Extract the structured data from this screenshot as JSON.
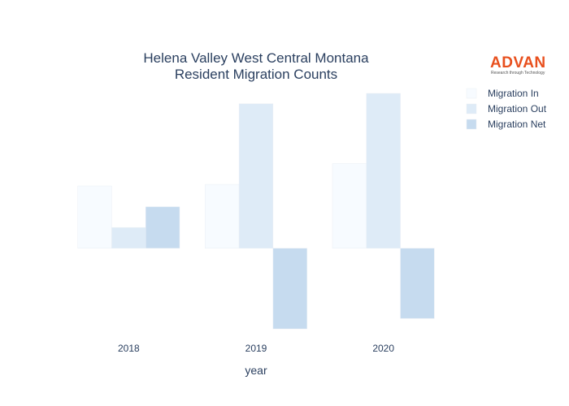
{
  "logo": {
    "name": "ADVAN",
    "tagline": "Research through Technology",
    "color": "#e8501e"
  },
  "chart_data": {
    "type": "bar",
    "title": [
      "Helena Valley West Central Montana",
      "Resident Migration Counts"
    ],
    "xlabel": "year",
    "ylabel": "",
    "categories": [
      "2018",
      "2019",
      "2020"
    ],
    "series": [
      {
        "name": "Migration In",
        "values": [
          78,
          80,
          106
        ],
        "color": "#f7fbff"
      },
      {
        "name": "Migration Out",
        "values": [
          26,
          181,
          194
        ],
        "color": "#deebf7"
      },
      {
        "name": "Migration Net",
        "values": [
          52,
          -101,
          -88
        ],
        "color": "#c6dbef"
      }
    ],
    "ylim": [
      -101,
      194
    ],
    "grid": false,
    "show_y_ticks": false,
    "legend_position": "top-right"
  }
}
